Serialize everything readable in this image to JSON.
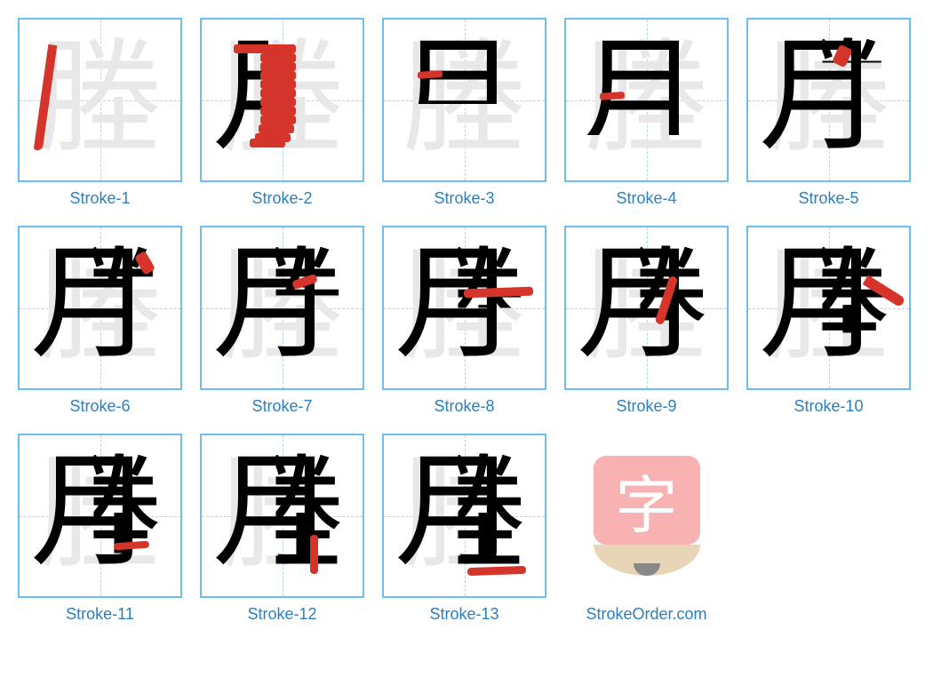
{
  "character": "塍",
  "radical_left": "月",
  "tile_border_color": "#6bbef0",
  "grid_dash_color": "#a8d8f5",
  "caption_color": "#2a7fbf",
  "red_color": "#d4342a",
  "black_color": "#000000",
  "ghost_color": "#e8e8e8",
  "logo_box_color": "#f8b2b2",
  "logo_pencil_color": "#e8d5b8",
  "logo_lead_color": "#888888",
  "logo_char": "字",
  "site_label": "StrokeOrder.com",
  "strokes": [
    {
      "label": "Stroke-1",
      "black_glyph": "",
      "red_desc": "left-curve-pie",
      "red_style": "left:24px;top:28px;width:10px;height:120px;transform:rotate(8deg);background:#d4342a;border-radius:0 0 8px 4px;"
    },
    {
      "label": "Stroke-2",
      "black_glyph": "丿",
      "red_desc": "heng-zhe-hook",
      "red_style": "left:36px;top:28px;width:40px;height:10px;background:#d4342a;box-shadow:30px 0 0 0 #d4342a, 30px 10px 0 0 #d4342a, 30px 20px 0 0 #d4342a, 30px 30px 0 0 #d4342a, 30px 40px 0 0 #d4342a, 30px 50px 0 0 #d4342a, 30px 60px 0 0 #d4342a, 30px 70px 0 0 #d4342a, 30px 80px 0 0 #d4342a, 28px 90px 0 0 #d4342a, 24px 100px 0 0 #d4342a, 18px 106px 0 0 #d4342a;"
    },
    {
      "label": "Stroke-3",
      "black_glyph": "月",
      "red_desc": "inner-heng-1",
      "red_style": "left:38px;top:58px;width:28px;height:8px;background:#d4342a;transform:rotate(-4deg);"
    },
    {
      "label": "Stroke-4",
      "black_glyph": "月",
      "red_desc": "inner-heng-2",
      "red_style": "left:38px;top:82px;width:28px;height:8px;background:#d4342a;transform:rotate(-4deg);"
    },
    {
      "label": "Stroke-5",
      "black_glyph": "月",
      "red_desc": "right-dot-1",
      "red_style": "left:98px;top:30px;width:16px;height:22px;background:#d4342a;transform:rotate(25deg);border-radius:4px;"
    },
    {
      "label": "Stroke-6",
      "black_glyph": "月",
      "red_desc": "right-dot-2",
      "red_style": "left:134px;top:28px;width:14px;height:24px;background:#d4342a;transform:rotate(-30deg);border-radius:4px;"
    },
    {
      "label": "Stroke-7",
      "black_glyph": "月",
      "red_desc": "right-dot-3",
      "red_style": "left:102px;top:56px;width:28px;height:10px;background:#d4342a;transform:rotate(-18deg);border-radius:4px;"
    },
    {
      "label": "Stroke-8",
      "black_glyph": "月",
      "red_desc": "long-heng",
      "red_style": "left:90px;top:68px;width:78px;height:10px;background:#d4342a;transform:rotate(-2deg);border-radius:4px;"
    },
    {
      "label": "Stroke-9",
      "black_glyph": "月",
      "red_desc": "left-pie",
      "red_style": "left:108px;top:54px;width:10px;height:56px;background:#d4342a;transform:rotate(18deg);border-radius:6px;"
    },
    {
      "label": "Stroke-10",
      "black_glyph": "月",
      "red_desc": "right-na",
      "red_style": "left:128px;top:66px;width:50px;height:12px;background:#d4342a;transform:rotate(32deg);border-radius:2px 10px 10px 2px;"
    },
    {
      "label": "Stroke-11",
      "black_glyph": "月",
      "red_desc": "earth-heng-1",
      "red_style": "left:106px;top:120px;width:40px;height:8px;background:#d4342a;transform:rotate(-4deg);border-radius:4px;"
    },
    {
      "label": "Stroke-12",
      "black_glyph": "月",
      "red_desc": "earth-shu",
      "red_style": "left:122px;top:112px;width:9px;height:44px;background:#d4342a;border-radius:4px;"
    },
    {
      "label": "Stroke-13",
      "black_glyph": "月",
      "red_desc": "earth-heng-2",
      "red_style": "left:94px;top:148px;width:66px;height:9px;background:#d4342a;transform:rotate(-2deg);border-radius:4px;"
    }
  ]
}
